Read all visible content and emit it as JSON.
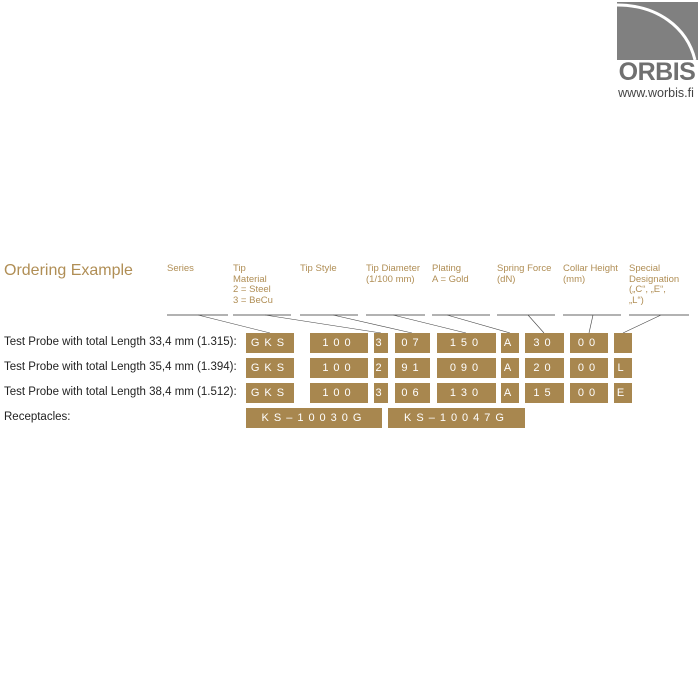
{
  "logo": {
    "text": "ORBIS",
    "url": "www.worbis.fi"
  },
  "title": "Ordering Example",
  "headers": [
    "Series",
    "Tip\nMaterial\n2 = Steel\n3 = BeCu",
    "Tip Style",
    "Tip Diameter\n(1/100 mm)",
    "Plating\nA = Gold",
    "Spring Force\n(dN)",
    "Collar Height\n(mm)",
    "Special\nDesignation\n(„C“, „E“,\n„L“)"
  ],
  "rows": [
    {
      "label": "Test Probe with total Length 33,4 mm (1.315):",
      "codes": [
        "GKS",
        "100",
        "3",
        "07",
        "150",
        "A",
        "30",
        "00",
        ""
      ]
    },
    {
      "label": "Test Probe with total Length 35,4 mm (1.394):",
      "codes": [
        "GKS",
        "100",
        "2",
        "91",
        "090",
        "A",
        "20",
        "00",
        "L"
      ]
    },
    {
      "label": "Test Probe with total Length 38,4 mm (1.512):",
      "codes": [
        "GKS",
        "100",
        "3",
        "06",
        "130",
        "A",
        "15",
        "00",
        "E"
      ]
    }
  ],
  "receptacles": {
    "label": "Receptacles:",
    "codes": [
      "KS–10030G",
      "KS–10047G"
    ]
  },
  "colors": {
    "accent": "#a8874f",
    "heading": "#b08e55"
  }
}
